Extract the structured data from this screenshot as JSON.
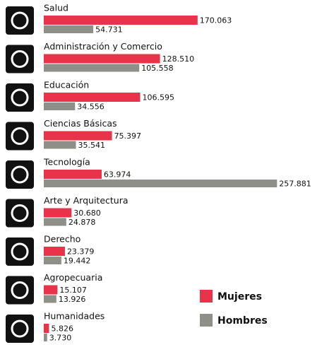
{
  "chart_data": {
    "type": "bar",
    "orientation": "horizontal",
    "categories": [
      "Salud",
      "Administración y Comercio",
      "Educación",
      "Ciencias Básicas",
      "Tecnología",
      "Arte y Arquitectura",
      "Derecho",
      "Agropecuaria",
      "Humanidades"
    ],
    "series": [
      {
        "name": "Mujeres",
        "color": "#e8334a",
        "values": [
          170063,
          128510,
          106595,
          75397,
          63974,
          30680,
          23379,
          15107,
          5826
        ],
        "value_labels": [
          "170.063",
          "128.510",
          "106.595",
          "75.397",
          "63.974",
          "30.680",
          "23.379",
          "15.107",
          "5.826"
        ]
      },
      {
        "name": "Hombres",
        "color": "#8f8f8a",
        "values": [
          54731,
          105558,
          34556,
          35541,
          257881,
          24878,
          19442,
          13926,
          3730
        ],
        "value_labels": [
          "54.731",
          "105.558",
          "34.556",
          "35.541",
          "257.881",
          "24.878",
          "19.442",
          "13.926",
          "3.730"
        ]
      }
    ],
    "xlim": [
      0,
      260000
    ],
    "legend": "bottom-right"
  }
}
